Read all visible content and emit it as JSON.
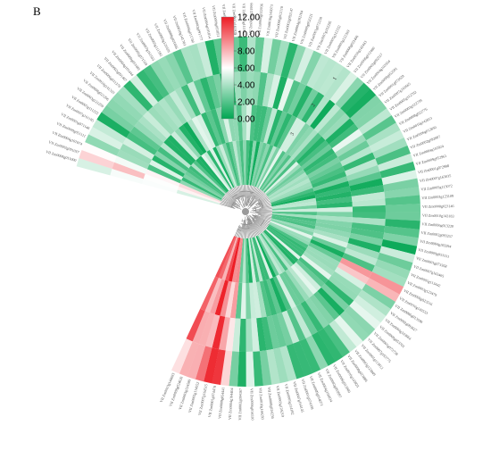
{
  "panel_label": "B",
  "chart_data": {
    "type": "heatmap",
    "layout": "circular",
    "rings": 4,
    "leaves": 100,
    "ring_labels": [
      "3",
      "2",
      "1"
    ],
    "colorbar": {
      "min": 0,
      "max": 12,
      "ticks": [
        "12.00",
        "10.00",
        "8.00",
        "6.00",
        "4.00",
        "2.00",
        "0.00"
      ],
      "colors": {
        "low": "#00a651",
        "mid": "#ffffff",
        "high": "#ed1c24"
      }
    },
    "legend_placement": "top-center",
    "dendrogram": "center",
    "leaf_label_pattern": "VII  ZmXX06g0XXXXX (rotated gene IDs around circumference)"
  }
}
